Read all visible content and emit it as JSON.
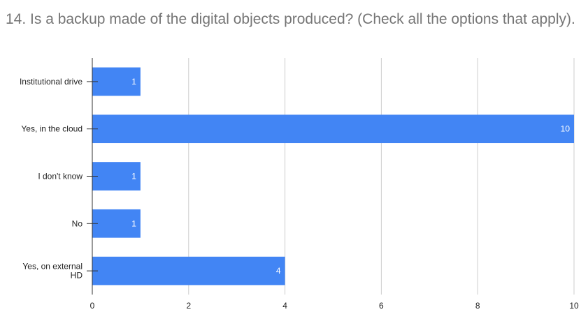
{
  "chart_data": {
    "type": "bar",
    "orientation": "horizontal",
    "title": "14. Is a backup made of the digital objects produced? (Check all the options that apply).",
    "categories": [
      [
        "Institutional drive"
      ],
      [
        "Yes, in the cloud"
      ],
      [
        "I don't know"
      ],
      [
        "No"
      ],
      [
        "Yes, on external",
        "HD"
      ]
    ],
    "values": [
      1,
      10,
      1,
      1,
      4
    ],
    "xlim": [
      0,
      10
    ],
    "xticks": [
      0,
      2,
      4,
      6,
      8,
      10
    ],
    "grid": true,
    "bar_color": "#4285f4",
    "data_labels": true
  }
}
